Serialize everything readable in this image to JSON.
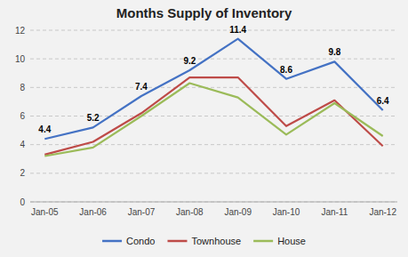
{
  "chart_data": {
    "type": "line",
    "title": "Months Supply of Inventory",
    "categories": [
      "Jan-05",
      "Jan-06",
      "Jan-07",
      "Jan-08",
      "Jan-09",
      "Jan-10",
      "Jan-11",
      "Jan-12"
    ],
    "series": [
      {
        "name": "Condo",
        "color": "#4472C4",
        "values": [
          4.4,
          5.2,
          7.4,
          9.2,
          11.4,
          8.6,
          9.8,
          6.4
        ],
        "data_labels": true
      },
      {
        "name": "Townhouse",
        "color": "#BE4B48",
        "values": [
          3.3,
          4.2,
          6.2,
          8.7,
          8.7,
          5.3,
          7.1,
          3.9
        ]
      },
      {
        "name": "House",
        "color": "#9BBB59",
        "values": [
          3.2,
          3.8,
          6.0,
          8.3,
          7.3,
          4.7,
          6.9,
          4.6
        ]
      }
    ],
    "ylim": [
      0,
      12
    ],
    "yticks": [
      0,
      2,
      4,
      6,
      8,
      10,
      12
    ],
    "grid": true,
    "legend": "bottom"
  }
}
